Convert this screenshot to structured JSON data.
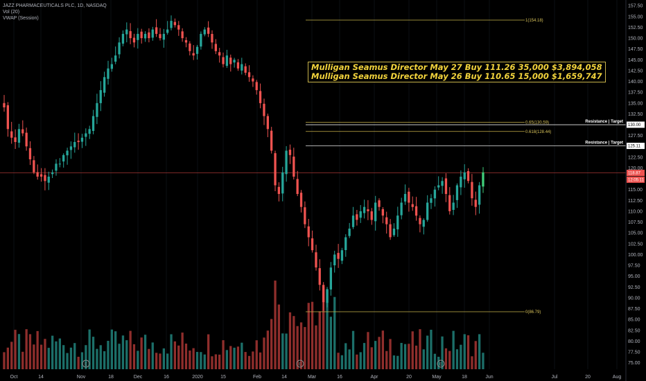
{
  "legend": {
    "title": "JAZZ PHARMACEUTICALS PLC, 1D, NASDAQ",
    "volume": "Vol (20)",
    "vwap": "VWAP (Session)"
  },
  "annotations": {
    "insider_lines": [
      "Mulligan Seamus Director May 27 Buy 111.26 35,000 $3,894,058",
      "Mulligan Seamus Director May 26 Buy 110.65 15,000 $1,659,747"
    ],
    "resistance_label": "Resistance | Target",
    "fib_levels": [
      {
        "label": "1(154.18)",
        "price": 154.18
      },
      {
        "label": "0.65(130.59)",
        "price": 130.59
      },
      {
        "label": "0.618(128.44)",
        "price": 128.44
      },
      {
        "label": "0(86.79)",
        "price": 86.79
      }
    ],
    "price_tags": [
      {
        "text": "130.00",
        "price": 130.0,
        "color": "#ffffff",
        "text_color": "#000000"
      },
      {
        "text": "125.11",
        "price": 125.11,
        "color": "#ffffff",
        "text_color": "#000000"
      },
      {
        "text": "118.87",
        "price": 118.87,
        "color": "#ef5350",
        "text_color": "#ffffff"
      },
      {
        "text": "12:05:11",
        "price": 117.3,
        "color": "#ef5350",
        "text_color": "#ffffff"
      }
    ],
    "current_price": 118.87
  },
  "colors": {
    "up": "#26a69a",
    "down": "#ef5350",
    "up_bright": "#3fce7a",
    "volume_up": "#1c6f69",
    "volume_down": "#8f2e2c",
    "fib": "#c9b44a",
    "background": "#000000"
  },
  "chart_data": {
    "type": "candlestick",
    "title": "JAZZ PHARMACEUTICALS PLC, 1D, NASDAQ",
    "x_ticks": [
      "Oct",
      "14",
      "Nov",
      "18",
      "Dec",
      "16",
      "2020",
      "15",
      "Feb",
      "14",
      "Mar",
      "16",
      "Apr",
      "20",
      "May",
      "18",
      "Jun",
      "Jul",
      "20",
      "Aug"
    ],
    "y_ticks": [
      75.0,
      77.5,
      80.0,
      82.5,
      85.0,
      87.5,
      90.0,
      92.5,
      95.0,
      97.5,
      100.0,
      102.5,
      105.0,
      107.5,
      110.0,
      112.5,
      115.0,
      117.5,
      120.0,
      122.5,
      125.0,
      127.5,
      130.0,
      132.5,
      135.0,
      137.5,
      140.0,
      142.5,
      145.0,
      147.5,
      150.0,
      152.5,
      155.0,
      157.5
    ],
    "ylim": [
      73.5,
      158.5
    ],
    "close_series": [
      134,
      129,
      127,
      126,
      129,
      128,
      125,
      122,
      119,
      118,
      118,
      117,
      118,
      119,
      121,
      121,
      123,
      124,
      125,
      126,
      126,
      127,
      128,
      129,
      132,
      135,
      138,
      141,
      143,
      144,
      146,
      149,
      151,
      152,
      150,
      149,
      151,
      150,
      151,
      150,
      152,
      151,
      150,
      151,
      152,
      154,
      153,
      152,
      150,
      149,
      147,
      146,
      148,
      151,
      152,
      151,
      149,
      147,
      146,
      144,
      146,
      144,
      145,
      143,
      144,
      142,
      141,
      140,
      138,
      135,
      132,
      129,
      124,
      116,
      114,
      119,
      124,
      123,
      118,
      114,
      111,
      107,
      104,
      101,
      97,
      93,
      89,
      92,
      97,
      100,
      99,
      101,
      104,
      106,
      109,
      108,
      110,
      111,
      110,
      108,
      112,
      111,
      109,
      107,
      104,
      106,
      109,
      112,
      114,
      112,
      111,
      109,
      107,
      108,
      112,
      113,
      115,
      116,
      117,
      114,
      110,
      112,
      116,
      118,
      119,
      117,
      113,
      111,
      116,
      119
    ]
  }
}
